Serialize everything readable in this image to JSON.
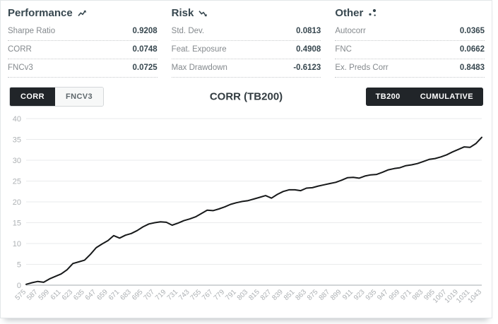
{
  "metrics": {
    "performance": {
      "title": "Performance",
      "icon": "trending-up-icon",
      "rows": [
        {
          "label": "Sharpe Ratio",
          "value": "0.9208"
        },
        {
          "label": "CORR",
          "value": "0.0748"
        },
        {
          "label": "FNCv3",
          "value": "0.0725"
        }
      ]
    },
    "risk": {
      "title": "Risk",
      "icon": "trending-down-icon",
      "rows": [
        {
          "label": "Std. Dev.",
          "value": "0.0813"
        },
        {
          "label": "Feat. Exposure",
          "value": "0.4908"
        },
        {
          "label": "Max Drawdown",
          "value": "-0.6123"
        }
      ]
    },
    "other": {
      "title": "Other",
      "icon": "scatter-plot-icon",
      "rows": [
        {
          "label": "Autocorr",
          "value": "0.0365"
        },
        {
          "label": "FNC",
          "value": "0.0662"
        },
        {
          "label": "Ex. Preds Corr",
          "value": "0.8483"
        }
      ]
    }
  },
  "controls": {
    "metric_toggle": [
      {
        "label": "CORR",
        "active": true
      },
      {
        "label": "FNCV3",
        "active": false
      }
    ],
    "chart_title": "CORR (TB200)",
    "right_toggle": [
      {
        "label": "TB200",
        "active": true
      },
      {
        "label": "CUMULATIVE",
        "active": true
      }
    ]
  },
  "colors": {
    "accent_dark": "#212529",
    "line": "#17191a",
    "grid": "#eaebec",
    "axis": "#d2d5d7",
    "tick_text": "#adb1b4"
  },
  "chart_data": {
    "type": "line",
    "title": "CORR (TB200)",
    "legend": [],
    "grid": true,
    "xlim": [
      575,
      1043
    ],
    "ylim": [
      0,
      40
    ],
    "y_ticks": [
      0,
      5,
      10,
      15,
      20,
      25,
      30,
      35,
      40
    ],
    "x_tick_labels": [
      "575",
      "587",
      "599",
      "611",
      "623",
      "635",
      "647",
      "659",
      "671",
      "683",
      "695",
      "707",
      "719",
      "731",
      "743",
      "755",
      "767",
      "779",
      "791",
      "803",
      "815",
      "827",
      "839",
      "851",
      "863",
      "875",
      "887",
      "899",
      "911",
      "923",
      "935",
      "947",
      "959",
      "971",
      "983",
      "995",
      "1007",
      "1019",
      "1031",
      "1043"
    ],
    "x": [
      575,
      581,
      587,
      593,
      599,
      605,
      611,
      617,
      623,
      629,
      635,
      641,
      647,
      653,
      659,
      665,
      671,
      677,
      683,
      689,
      695,
      701,
      707,
      713,
      719,
      725,
      731,
      737,
      743,
      749,
      755,
      761,
      767,
      773,
      779,
      785,
      791,
      797,
      803,
      809,
      815,
      821,
      827,
      833,
      839,
      845,
      851,
      857,
      863,
      869,
      875,
      881,
      887,
      893,
      899,
      905,
      911,
      917,
      923,
      929,
      935,
      941,
      947,
      953,
      959,
      965,
      971,
      977,
      983,
      989,
      995,
      1001,
      1007,
      1013,
      1019,
      1025,
      1031,
      1037,
      1043
    ],
    "values": [
      0.2,
      0.6,
      0.9,
      0.7,
      1.5,
      2.1,
      2.7,
      3.7,
      5.2,
      5.6,
      6.0,
      7.4,
      9.0,
      9.9,
      10.7,
      11.9,
      11.3,
      12.0,
      12.4,
      13.1,
      14.0,
      14.7,
      15.0,
      15.2,
      15.1,
      14.4,
      14.9,
      15.5,
      15.9,
      16.4,
      17.2,
      18.0,
      17.9,
      18.3,
      18.8,
      19.4,
      19.8,
      20.1,
      20.3,
      20.7,
      21.1,
      21.5,
      20.9,
      21.8,
      22.5,
      22.9,
      22.9,
      22.7,
      23.3,
      23.4,
      23.8,
      24.1,
      24.4,
      24.7,
      25.2,
      25.8,
      25.9,
      25.7,
      26.2,
      26.5,
      26.6,
      27.1,
      27.7,
      28.0,
      28.2,
      28.7,
      28.9,
      29.2,
      29.7,
      30.2,
      30.4,
      30.8,
      31.3,
      32.0,
      32.6,
      33.2,
      33.1,
      34.0,
      35.5
    ]
  }
}
